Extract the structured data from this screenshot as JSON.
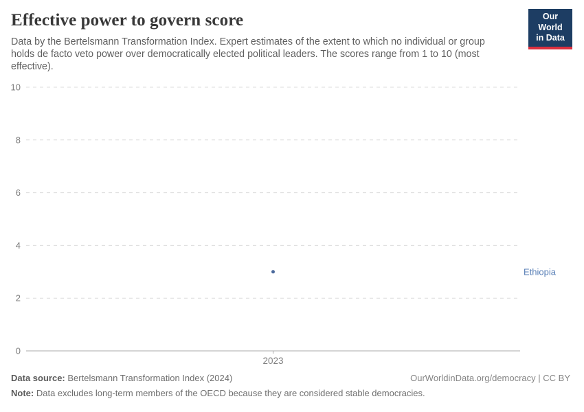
{
  "header": {
    "title": "Effective power to govern score",
    "subtitle": "Data by the Bertelsmann Transformation Index. Expert estimates of the extent to which no individual or group holds de facto veto power over democratically elected political leaders. The scores range from 1 to 10 (most effective).",
    "logo": {
      "line1": "Our World",
      "line2": "in Data"
    }
  },
  "chart_data": {
    "type": "scatter",
    "title": "Effective power to govern score",
    "categories": [
      "2023"
    ],
    "series": [
      {
        "name": "Ethiopia",
        "values": [
          3
        ],
        "color": "#4c6a9c",
        "label_color": "#577eb6"
      }
    ],
    "xlabel": "",
    "ylabel": "",
    "ylim": [
      0,
      10
    ],
    "yticks": [
      0,
      2,
      4,
      6,
      8,
      10
    ],
    "grid": "horizontal-dashed",
    "legend_position": "entity-label-right-of-plot"
  },
  "footer": {
    "datasource_label": "Data source:",
    "datasource_value": "Bertelsmann Transformation Index (2024)",
    "attribution": "OurWorldinData.org/democracy | CC BY",
    "note_label": "Note:",
    "note_text": "Data excludes long-term members of the OECD because they are considered stable democracies."
  },
  "colors": {
    "accent_series": "#4c6a9c",
    "entity_label": "#577eb6",
    "logo_bg": "#1d3d63",
    "logo_accent": "#dc2f3e",
    "gridline": "#dcdcdc",
    "axis_line": "#a8a8a8",
    "tick_label": "#7e7e7e",
    "title_text": "#383838",
    "subtitle_text": "#5f5f5f"
  }
}
